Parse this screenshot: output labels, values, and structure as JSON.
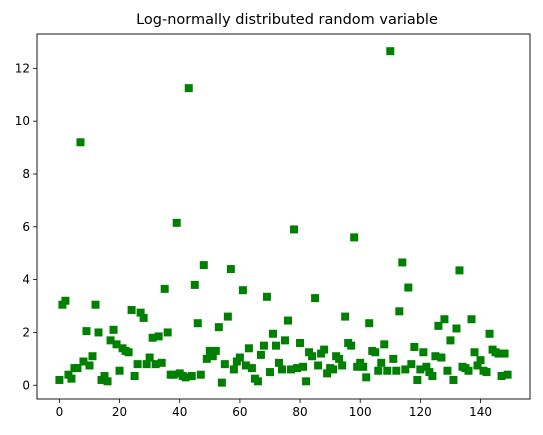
{
  "chart_data": {
    "type": "scatter",
    "title": "Log-normally distributed random variable",
    "xlabel": "",
    "ylabel": "",
    "xlim": [
      -7.45,
      156.45
    ],
    "ylim": [
      -0.52,
      13.3
    ],
    "xticks": [
      0,
      20,
      40,
      60,
      80,
      100,
      120,
      140
    ],
    "yticks": [
      0,
      2,
      4,
      6,
      8,
      10,
      12
    ],
    "grid": false,
    "marker": "square",
    "color": "#008000",
    "series": [
      {
        "x": [
          0,
          1,
          2,
          3,
          4,
          5,
          6,
          7,
          8,
          9,
          10,
          11,
          12,
          13,
          14,
          15,
          16,
          17,
          18,
          19,
          20,
          21,
          22,
          23,
          24,
          25,
          26,
          27,
          28,
          29,
          30,
          31,
          32,
          33,
          34,
          35,
          36,
          37,
          38,
          39,
          40,
          41,
          42,
          43,
          44,
          45,
          46,
          47,
          48,
          49,
          50,
          51,
          52,
          53,
          54,
          55,
          56,
          57,
          58,
          59,
          60,
          61,
          62,
          63,
          64,
          65,
          66,
          67,
          68,
          69,
          70,
          71,
          72,
          73,
          74,
          75,
          76,
          77,
          78,
          79,
          80,
          81,
          82,
          83,
          84,
          85,
          86,
          87,
          88,
          89,
          90,
          91,
          92,
          93,
          94,
          95,
          96,
          97,
          98,
          99,
          100,
          101,
          102,
          103,
          104,
          105,
          106,
          107,
          108,
          109,
          110,
          111,
          112,
          113,
          114,
          115,
          116,
          117,
          118,
          119,
          120,
          121,
          122,
          123,
          124,
          125,
          126,
          127,
          128,
          129,
          130,
          131,
          132,
          133,
          134,
          135,
          136,
          137,
          138,
          139,
          140,
          141,
          142,
          143,
          144,
          145,
          146,
          147,
          148,
          149
        ],
        "y": [
          0.2,
          3.05,
          3.2,
          0.4,
          0.25,
          0.65,
          0.65,
          9.2,
          0.9,
          2.05,
          0.75,
          1.1,
          3.05,
          2.0,
          0.2,
          0.35,
          0.15,
          1.7,
          2.1,
          1.55,
          0.55,
          1.4,
          1.3,
          1.25,
          2.85,
          0.35,
          0.8,
          2.75,
          2.55,
          0.8,
          1.05,
          1.8,
          0.8,
          1.85,
          0.85,
          3.65,
          2.0,
          0.4,
          0.4,
          6.15,
          0.45,
          0.35,
          0.3,
          11.25,
          0.35,
          3.8,
          2.35,
          0.4,
          4.55,
          1.0,
          1.3,
          1.1,
          1.3,
          2.2,
          0.1,
          0.8,
          2.6,
          4.4,
          0.6,
          0.9,
          1.05,
          3.6,
          0.75,
          1.4,
          0.65,
          0.25,
          0.15,
          1.15,
          1.5,
          3.35,
          0.5,
          1.95,
          1.5,
          0.85,
          0.6,
          1.7,
          2.45,
          0.6,
          5.9,
          0.65,
          1.6,
          0.7,
          0.15,
          1.25,
          1.1,
          3.3,
          0.75,
          1.2,
          1.35,
          0.45,
          0.65,
          0.6,
          1.1,
          1.0,
          0.75,
          2.6,
          1.6,
          1.5,
          5.6,
          0.7,
          0.85,
          0.7,
          0.3,
          2.35,
          1.3,
          1.25,
          0.55,
          0.85,
          1.55,
          0.55,
          12.65,
          1.0,
          0.55,
          2.8,
          4.65,
          0.6,
          3.7,
          0.8,
          1.45,
          0.2,
          0.6,
          1.25,
          0.7,
          0.5,
          0.35,
          1.1,
          2.25,
          1.05,
          2.5,
          0.55,
          1.7,
          0.2,
          2.15,
          4.35,
          0.7,
          0.65,
          0.55,
          2.5,
          1.25,
          0.75,
          0.95,
          0.55,
          0.5,
          1.95,
          1.35,
          1.25,
          1.2,
          0.35,
          1.2,
          0.4
        ]
      }
    ]
  }
}
